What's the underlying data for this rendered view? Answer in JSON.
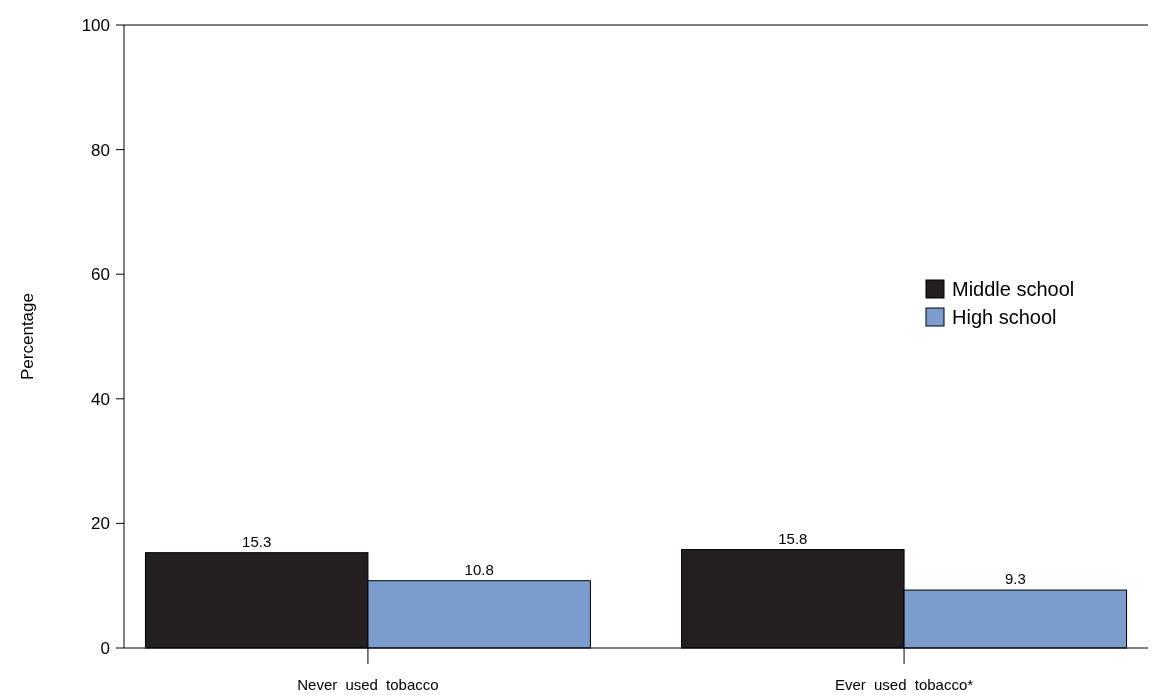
{
  "chart_data": {
    "type": "bar",
    "categories": [
      "Never used tobacco",
      "Ever used tobacco*"
    ],
    "ylabel": "Percentage",
    "series": [
      {
        "name": "Middle school",
        "color": "#231f20",
        "values": [
          15.3,
          15.8
        ]
      },
      {
        "name": "High school",
        "color": "#7b9dce",
        "values": [
          10.8,
          9.3
        ]
      }
    ],
    "ylim": [
      0,
      100
    ],
    "yticks": [
      0,
      20,
      40,
      60,
      80,
      100
    ],
    "data_labels": true,
    "legend": "right",
    "grid": false
  }
}
